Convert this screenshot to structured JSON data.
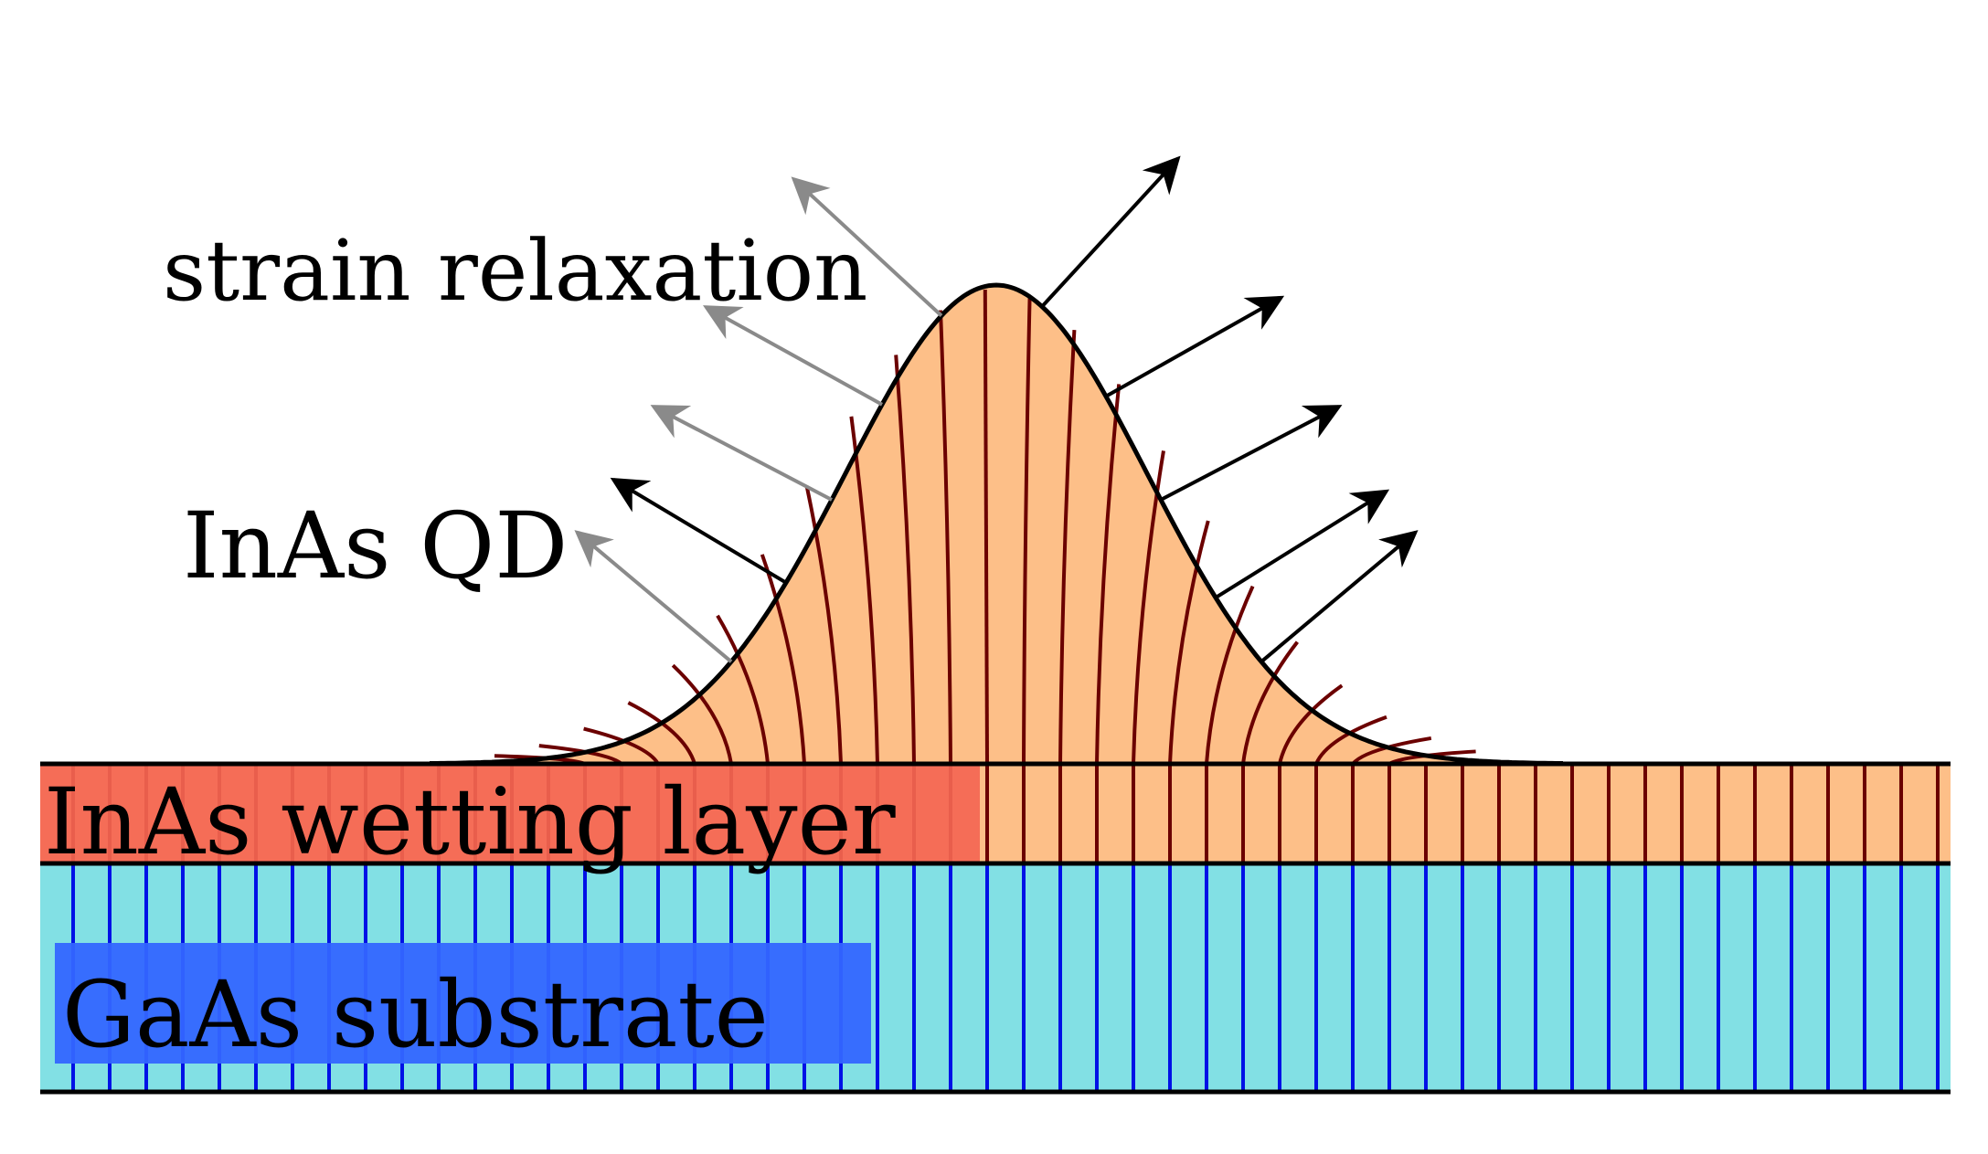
{
  "labels": {
    "strain": "strain relaxation",
    "qd": "InAs QD",
    "wetting": "InAs wetting layer",
    "substrate": "GaAs substrate"
  },
  "colors": {
    "inas_fill": "#fdbf88",
    "inas_line": "#6b0000",
    "wetting_highlight": "#f46652",
    "gaas_fill": "#82e0e4",
    "gaas_line": "#0011e6",
    "substrate_highlight": "#3366ff",
    "outline": "#000000",
    "arrow_primary": "#000000",
    "arrow_faded": "#8a8a8a"
  }
}
